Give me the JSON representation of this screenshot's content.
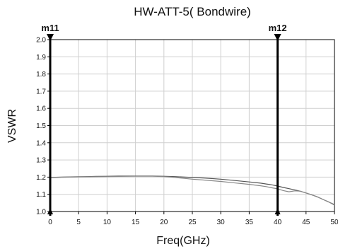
{
  "chart_data": {
    "type": "line",
    "title": "HW-ATT-5( Bondwire)",
    "xlabel": "Freq(GHz)",
    "ylabel": "VSWR",
    "xlim": [
      0,
      50
    ],
    "ylim": [
      1.0,
      2.0
    ],
    "xticks": [
      "0",
      "5",
      "10",
      "15",
      "20",
      "25",
      "30",
      "35",
      "40",
      "45",
      "50"
    ],
    "yticks": [
      "1.0",
      "1.1",
      "1.2",
      "1.3",
      "1.4",
      "1.5",
      "1.6",
      "1.7",
      "1.8",
      "1.9",
      "2.0"
    ],
    "grid": true,
    "markers": [
      {
        "label": "m11",
        "x": 0
      },
      {
        "label": "m12",
        "x": 40
      }
    ],
    "series": [
      {
        "color": "#555555",
        "x": [
          0,
          2,
          5,
          8,
          10,
          12,
          15,
          18,
          20,
          22,
          25,
          27,
          30,
          32,
          35,
          37,
          38,
          39,
          40,
          41,
          42,
          43,
          44,
          45,
          46,
          47,
          48,
          49,
          50
        ],
        "values": [
          1.198,
          1.2,
          1.202,
          1.204,
          1.205,
          1.206,
          1.206,
          1.206,
          1.205,
          1.203,
          1.198,
          1.195,
          1.188,
          1.182,
          1.172,
          1.165,
          1.16,
          1.155,
          1.148,
          1.14,
          1.133,
          1.126,
          1.118,
          1.108,
          1.097,
          1.085,
          1.07,
          1.055,
          1.04
        ]
      },
      {
        "color": "#888888",
        "x": [
          0,
          2,
          5,
          8,
          10,
          12,
          15,
          18,
          20,
          22,
          25,
          27,
          30,
          32,
          35,
          37,
          38,
          39,
          40,
          41,
          42,
          43,
          44,
          45,
          46,
          47,
          48,
          49,
          50
        ],
        "values": [
          1.197,
          1.199,
          1.201,
          1.202,
          1.203,
          1.204,
          1.205,
          1.205,
          1.203,
          1.198,
          1.188,
          1.183,
          1.175,
          1.168,
          1.158,
          1.15,
          1.145,
          1.138,
          1.132,
          1.122,
          1.115,
          1.12,
          1.118,
          1.108,
          1.097,
          1.085,
          1.07,
          1.055,
          1.037
        ]
      }
    ]
  }
}
